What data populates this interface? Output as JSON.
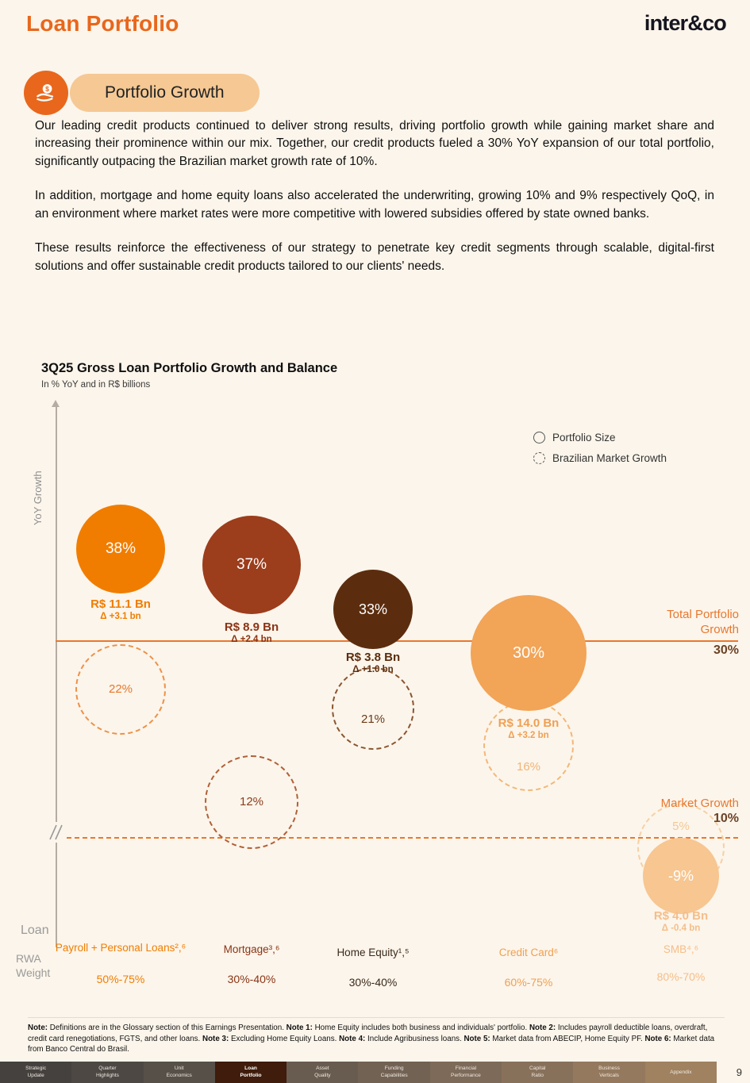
{
  "page": {
    "number": "9"
  },
  "header": {
    "title": "Loan Portfolio",
    "logo": "inter&co"
  },
  "section": {
    "badge_label": "Portfolio Growth"
  },
  "paragraphs": [
    "Our leading credit products continued to deliver strong results, driving portfolio growth while gaining market share and increasing their prominence within our mix. Together, our credit products fueled a 30% YoY expansion of our total portfolio, significantly outpacing the Brazilian market growth rate of 10%.",
    "In addition, mortgage and home equity loans also accelerated the underwriting, growing 10% and 9% respectively QoQ, in an environment where market rates were more competitive with lowered subsidies offered by state owned banks.",
    "These results reinforce the effectiveness of our strategy to penetrate key credit segments through scalable, digital-first solutions and offer sustainable credit products tailored to our clients' needs."
  ],
  "chart_data": {
    "type": "scatter",
    "title": "3Q25 Gross Loan Portfolio Growth and Balance",
    "subtitle": "In % YoY and in R$ billions",
    "ylabel": "YoY Growth",
    "legend": [
      {
        "label": "Portfolio Size",
        "marker": "solid-circle"
      },
      {
        "label": "Brazilian Market Growth",
        "marker": "dashed-circle"
      }
    ],
    "reference_lines": [
      {
        "name": "total-portfolio-growth",
        "label": "Total Portfolio Growth",
        "value_pct": 30,
        "value_label": "30%",
        "style": "solid",
        "color": "#E8782F"
      },
      {
        "name": "market-growth",
        "label": "Market Growth",
        "value_pct": 10,
        "value_label": "10%",
        "style": "dashed",
        "color": "#E8782F"
      }
    ],
    "axis_titles": {
      "loan": "Loan",
      "rwa": "RWA Weight"
    },
    "categories": [
      {
        "name": "Payroll + Personal Loans",
        "axis_label": "Payroll + Personal Loans²,⁶",
        "rwa_weight": "50%-75%",
        "portfolio_growth_pct": 38,
        "portfolio_growth_label": "38%",
        "balance_label": "R$ 11.1 Bn",
        "delta_label": "Δ +3.1 bn",
        "market_growth_pct": 22,
        "market_growth_label": "22%",
        "color": "#F07D00",
        "label_color": "#F07D00",
        "dashed_color": "#ED9148",
        "dashed_label_color": "#E8762C",
        "axis_label_color": "#F07D00"
      },
      {
        "name": "Mortgage",
        "axis_label": "Mortgage³,⁶",
        "rwa_weight": "30%-40%",
        "portfolio_growth_pct": 37,
        "portfolio_growth_label": "37%",
        "balance_label": "R$ 8.9 Bn",
        "delta_label": "Δ +2.4 bn",
        "market_growth_pct": 12,
        "market_growth_label": "12%",
        "color": "#9C3D1C",
        "label_color": "#8A3415",
        "dashed_color": "#B06038",
        "dashed_label_color": "#8A3E1C",
        "axis_label_color": "#8A3415"
      },
      {
        "name": "Home Equity",
        "axis_label": "Home Equity¹,⁵",
        "rwa_weight": "30%-40%",
        "portfolio_growth_pct": 33,
        "portfolio_growth_label": "33%",
        "balance_label": "R$ 3.8 Bn",
        "delta_label": "Δ +1.0 bn",
        "market_growth_pct": 21,
        "market_growth_label": "21%",
        "color": "#5B2D0E",
        "label_color": "#5B2D0E",
        "dashed_color": "#8A5530",
        "dashed_label_color": "#6B3A18",
        "axis_label_color": "#3A2A1A"
      },
      {
        "name": "Credit Card",
        "axis_label": "Credit Card⁶",
        "rwa_weight": "60%-75%",
        "portfolio_growth_pct": 30,
        "portfolio_growth_label": "30%",
        "balance_label": "R$ 14.0 Bn",
        "delta_label": "Δ +3.2 bn",
        "market_growth_pct": 16,
        "market_growth_label": "16%",
        "color": "#F2A457",
        "label_color": "#EFA054",
        "dashed_color": "#F2B878",
        "dashed_label_color": "#F0B478",
        "axis_label_color": "#F0A050"
      },
      {
        "name": "SMB",
        "axis_label": "SMB⁴,⁶",
        "rwa_weight": "80%-70%",
        "portfolio_growth_pct": -9,
        "portfolio_growth_label": "-9%",
        "balance_label": "R$ 4.0 Bn",
        "delta_label": "Δ -0.4 bn",
        "market_growth_pct": 5,
        "market_growth_label": "5%",
        "color": "#F7C691",
        "label_color": "#F4BE8A",
        "dashed_color": "#F6D0A4",
        "dashed_label_color": "#F3C896",
        "axis_label_color": "#F4BE8A"
      }
    ]
  },
  "footnote": {
    "segments": [
      {
        "bold": true,
        "text": "Note:"
      },
      {
        "bold": false,
        "text": " Definitions are in the Glossary section of this Earnings Presentation. "
      },
      {
        "bold": true,
        "text": "Note 1:"
      },
      {
        "bold": false,
        "text": " Home Equity includes both business and individuals' portfolio. "
      },
      {
        "bold": true,
        "text": "Note 2:"
      },
      {
        "bold": false,
        "text": " Includes payroll deductible loans, overdraft, credit card renegotiations, FGTS, and other loans. "
      },
      {
        "bold": true,
        "text": "Note 3:"
      },
      {
        "bold": false,
        "text": " Excluding Home Equity Loans. "
      },
      {
        "bold": true,
        "text": "Note 4:"
      },
      {
        "bold": false,
        "text": " Include Agribusiness loans. "
      },
      {
        "bold": true,
        "text": "Note 5:"
      },
      {
        "bold": false,
        "text": " Market data from ABECIP, Home Equity PF.  "
      },
      {
        "bold": true,
        "text": "Note 6:"
      },
      {
        "bold": false,
        "text": " Market data from Banco Central do Brasil."
      }
    ]
  },
  "nav": {
    "active_index": 3,
    "tabs": [
      {
        "id": "strategic-update",
        "lines": [
          "Strategic",
          "Update"
        ]
      },
      {
        "id": "quarter-highlights",
        "lines": [
          "Quarter",
          "Highlights"
        ]
      },
      {
        "id": "unit-economics",
        "lines": [
          "Unit",
          "Economics"
        ]
      },
      {
        "id": "loan-portfolio",
        "lines": [
          "Loan",
          "Portfolio"
        ]
      },
      {
        "id": "asset-quality",
        "lines": [
          "Asset",
          "Quality"
        ]
      },
      {
        "id": "funding-capabilities",
        "lines": [
          "Funding",
          "Capabilities"
        ]
      },
      {
        "id": "financial-performance",
        "lines": [
          "Financial",
          "Performance"
        ]
      },
      {
        "id": "capital-ratio",
        "lines": [
          "Capital",
          "Ratio"
        ]
      },
      {
        "id": "business-verticals",
        "lines": [
          "Business",
          "Verticals"
        ]
      },
      {
        "id": "appendix",
        "lines": [
          "Appendix"
        ]
      }
    ]
  }
}
